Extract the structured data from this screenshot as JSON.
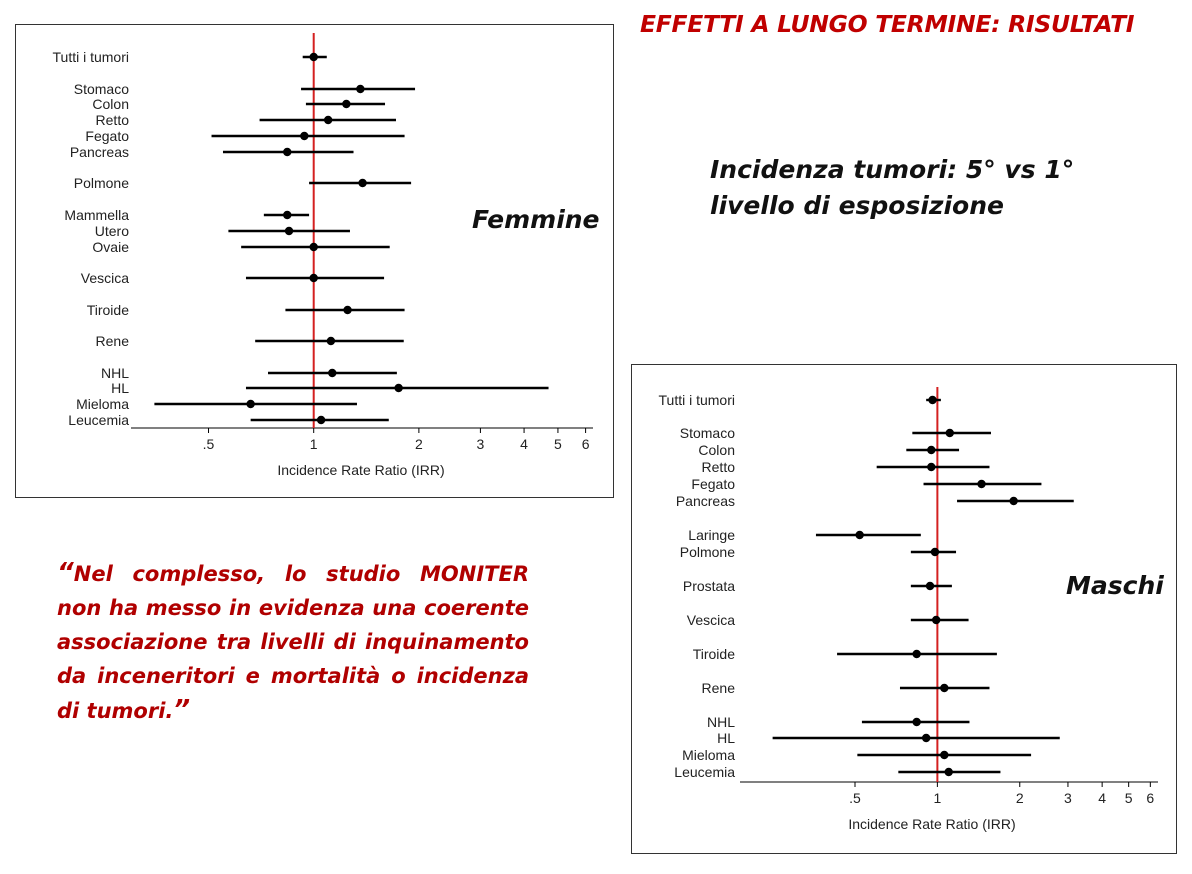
{
  "title": "EFFETTI A LUNGO TERMINE: RISULTATI",
  "subtitle": {
    "line1": "Incidenza tumori: 5° vs 1°",
    "line2": "livello di esposizione"
  },
  "quote": {
    "open": "“",
    "text": "Nel complesso, lo studio MONITER non ha messo in evidenza una coerente associazione tra livelli di inquinamento da inceneritori e mortalità o incidenza di tumori.",
    "close": "”"
  },
  "colors": {
    "title": "#c00000",
    "quote": "#b00000",
    "refline": "#d42020",
    "marks": "#000000"
  },
  "chart_data": [
    {
      "type": "forest",
      "title": "Femmine",
      "xlabel": "Incidence Rate Ratio (IRR)",
      "xscale": "log",
      "xlim": [
        0.3,
        6.3
      ],
      "xticks": [
        ".5",
        "1",
        "2",
        "3",
        "4",
        "5",
        "6"
      ],
      "reference_line": 1,
      "rows": [
        {
          "label": "Tutti i tumori",
          "est": 1.0,
          "low": 0.93,
          "high": 1.09
        },
        {
          "label": "Stomaco",
          "est": 1.36,
          "low": 0.92,
          "high": 1.95
        },
        {
          "label": "Colon",
          "est": 1.24,
          "low": 0.95,
          "high": 1.6
        },
        {
          "label": "Retto",
          "est": 1.1,
          "low": 0.7,
          "high": 1.72
        },
        {
          "label": "Fegato",
          "est": 0.94,
          "low": 0.51,
          "high": 1.82
        },
        {
          "label": "Pancreas",
          "est": 0.84,
          "low": 0.55,
          "high": 1.3
        },
        {
          "label": "Polmone",
          "est": 1.38,
          "low": 0.97,
          "high": 1.9
        },
        {
          "label": "Mammella",
          "est": 0.84,
          "low": 0.72,
          "high": 0.97
        },
        {
          "label": "Utero",
          "est": 0.85,
          "low": 0.57,
          "high": 1.27
        },
        {
          "label": "Ovaie",
          "est": 1.0,
          "low": 0.62,
          "high": 1.65
        },
        {
          "label": "Vescica",
          "est": 1.0,
          "low": 0.64,
          "high": 1.59
        },
        {
          "label": "Tiroide",
          "est": 1.25,
          "low": 0.83,
          "high": 1.82
        },
        {
          "label": "Rene",
          "est": 1.12,
          "low": 0.68,
          "high": 1.81
        },
        {
          "label": "NHL",
          "est": 1.13,
          "low": 0.74,
          "high": 1.73
        },
        {
          "label": "HL",
          "est": 1.75,
          "low": 0.64,
          "high": 4.7
        },
        {
          "label": "Mieloma",
          "est": 0.66,
          "low": 0.35,
          "high": 1.33
        },
        {
          "label": "Leucemia",
          "est": 1.05,
          "low": 0.66,
          "high": 1.64
        }
      ]
    },
    {
      "type": "forest",
      "title": "Maschi",
      "xlabel": "Incidence Rate Ratio (IRR)",
      "xscale": "log",
      "xlim": [
        0.19,
        6.4
      ],
      "xticks": [
        ".5",
        "1",
        "2",
        "3",
        "4",
        "5",
        "6"
      ],
      "reference_line": 1,
      "rows": [
        {
          "label": "Tutti i tumori",
          "est": 0.96,
          "low": 0.91,
          "high": 1.03
        },
        {
          "label": "Stomaco",
          "est": 1.11,
          "low": 0.81,
          "high": 1.57
        },
        {
          "label": "Colon",
          "est": 0.95,
          "low": 0.77,
          "high": 1.2
        },
        {
          "label": "Retto",
          "est": 0.95,
          "low": 0.6,
          "high": 1.55
        },
        {
          "label": "Fegato",
          "est": 1.45,
          "low": 0.89,
          "high": 2.4
        },
        {
          "label": "Pancreas",
          "est": 1.9,
          "low": 1.18,
          "high": 3.15
        },
        {
          "label": "Laringe",
          "est": 0.52,
          "low": 0.36,
          "high": 0.87
        },
        {
          "label": "Polmone",
          "est": 0.98,
          "low": 0.8,
          "high": 1.17
        },
        {
          "label": "Prostata",
          "est": 0.94,
          "low": 0.8,
          "high": 1.13
        },
        {
          "label": "Vescica",
          "est": 0.99,
          "low": 0.8,
          "high": 1.3
        },
        {
          "label": "Tiroide",
          "est": 0.84,
          "low": 0.43,
          "high": 1.65
        },
        {
          "label": "Rene",
          "est": 1.06,
          "low": 0.73,
          "high": 1.55
        },
        {
          "label": "NHL",
          "est": 0.84,
          "low": 0.53,
          "high": 1.31
        },
        {
          "label": "HL",
          "est": 0.91,
          "low": 0.25,
          "high": 2.8
        },
        {
          "label": "Mieloma",
          "est": 1.06,
          "low": 0.51,
          "high": 2.2
        },
        {
          "label": "Leucemia",
          "est": 1.1,
          "low": 0.72,
          "high": 1.7
        }
      ]
    }
  ]
}
